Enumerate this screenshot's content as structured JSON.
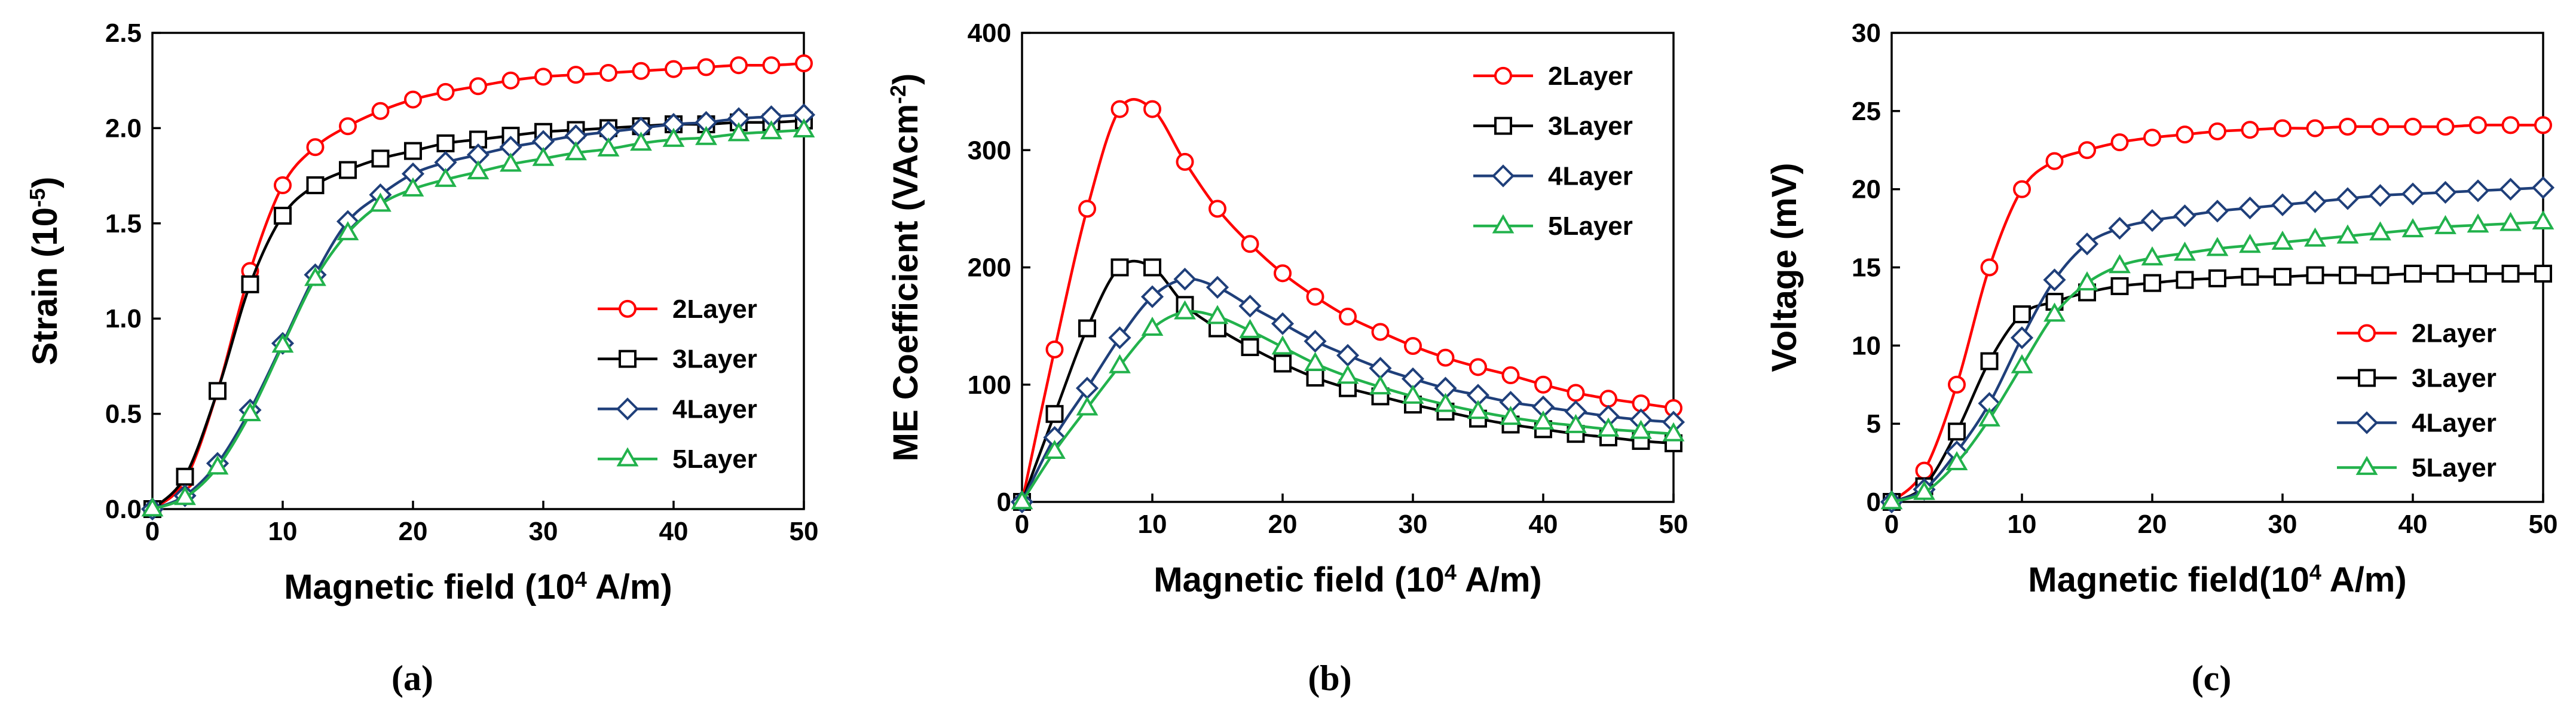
{
  "figure": {
    "colors": {
      "2Layer": "#ff0000",
      "3Layer": "#000000",
      "4Layer": "#1f3f7a",
      "5Layer": "#22b24c"
    },
    "markers": {
      "2Layer": "circle",
      "3Layer": "square",
      "4Layer": "diamond",
      "5Layer": "triangle"
    }
  },
  "chart_data": [
    {
      "type": "line",
      "panel_label": "(a)",
      "xlabel": "Magnetic field (10⁴ A/m)",
      "ylabel": "Strain (10⁻⁵)",
      "xlim": [
        0,
        50
      ],
      "ylim": [
        0,
        2.5
      ],
      "xticks": [
        "0",
        "10",
        "20",
        "30",
        "40",
        "50"
      ],
      "yticks": [
        "0.0",
        "0.5",
        "1.0",
        "1.5",
        "2.0",
        "2.5"
      ],
      "legend_position": "lower-right",
      "x": [
        0,
        2.5,
        5,
        7.5,
        10,
        12.5,
        15,
        17.5,
        20,
        22.5,
        25,
        27.5,
        30,
        32.5,
        35,
        37.5,
        40,
        42.5,
        45,
        47.5,
        50
      ],
      "series": [
        {
          "name": "2Layer",
          "values": [
            0,
            0.15,
            0.62,
            1.25,
            1.7,
            1.9,
            2.01,
            2.09,
            2.15,
            2.19,
            2.22,
            2.25,
            2.27,
            2.28,
            2.29,
            2.3,
            2.31,
            2.32,
            2.33,
            2.33,
            2.34
          ]
        },
        {
          "name": "3Layer",
          "values": [
            0,
            0.17,
            0.62,
            1.18,
            1.54,
            1.7,
            1.78,
            1.84,
            1.88,
            1.92,
            1.94,
            1.96,
            1.98,
            1.99,
            2.0,
            2.01,
            2.02,
            2.02,
            2.03,
            2.03,
            2.04
          ]
        },
        {
          "name": "4Layer",
          "values": [
            0,
            0.07,
            0.24,
            0.52,
            0.87,
            1.23,
            1.51,
            1.65,
            1.76,
            1.82,
            1.86,
            1.9,
            1.93,
            1.96,
            1.98,
            2.0,
            2.02,
            2.03,
            2.05,
            2.06,
            2.07
          ]
        },
        {
          "name": "5Layer",
          "values": [
            0,
            0.06,
            0.22,
            0.5,
            0.86,
            1.21,
            1.45,
            1.6,
            1.68,
            1.73,
            1.77,
            1.81,
            1.84,
            1.87,
            1.89,
            1.92,
            1.94,
            1.95,
            1.97,
            1.98,
            1.99
          ]
        }
      ]
    },
    {
      "type": "line",
      "panel_label": "(b)",
      "xlabel": "Magnetic field (10⁴ A/m)",
      "ylabel": "ME Coefficient (VAcm⁻²)",
      "xlim": [
        0,
        50
      ],
      "ylim": [
        0,
        400
      ],
      "xticks": [
        "0",
        "10",
        "20",
        "30",
        "40",
        "50"
      ],
      "yticks": [
        "0",
        "100",
        "200",
        "300",
        "400"
      ],
      "legend_position": "upper-right",
      "x": [
        0,
        2.5,
        5,
        7.5,
        10,
        12.5,
        15,
        17.5,
        20,
        22.5,
        25,
        27.5,
        30,
        32.5,
        35,
        37.5,
        40,
        42.5,
        45,
        47.5,
        50
      ],
      "series": [
        {
          "name": "2Layer",
          "values": [
            0,
            130,
            250,
            335,
            335,
            290,
            250,
            220,
            195,
            175,
            158,
            145,
            133,
            123,
            115,
            108,
            100,
            93,
            88,
            84,
            80
          ]
        },
        {
          "name": "3Layer",
          "values": [
            0,
            75,
            148,
            200,
            200,
            168,
            148,
            132,
            118,
            106,
            97,
            90,
            83,
            77,
            71,
            66,
            62,
            58,
            55,
            52,
            50
          ]
        },
        {
          "name": "4Layer",
          "values": [
            0,
            55,
            97,
            140,
            175,
            190,
            183,
            167,
            152,
            137,
            125,
            114,
            105,
            97,
            91,
            85,
            81,
            77,
            73,
            70,
            68
          ]
        },
        {
          "name": "5Layer",
          "values": [
            0,
            43,
            80,
            116,
            148,
            162,
            158,
            146,
            132,
            118,
            107,
            98,
            90,
            83,
            77,
            72,
            68,
            65,
            62,
            60,
            58
          ]
        }
      ]
    },
    {
      "type": "line",
      "panel_label": "(c)",
      "xlabel": "Magnetic field(10⁴ A/m)",
      "ylabel": "Voltage (mV)",
      "xlim": [
        0,
        50
      ],
      "ylim": [
        0,
        30
      ],
      "xticks": [
        "0",
        "10",
        "20",
        "30",
        "40",
        "50"
      ],
      "yticks": [
        "0",
        "5",
        "10",
        "15",
        "20",
        "25",
        "30"
      ],
      "legend_position": "lower-right",
      "x": [
        0,
        2.5,
        5,
        7.5,
        10,
        12.5,
        15,
        17.5,
        20,
        22.5,
        25,
        27.5,
        30,
        32.5,
        35,
        37.5,
        40,
        42.5,
        45,
        47.5,
        50
      ],
      "series": [
        {
          "name": "2Layer",
          "values": [
            0,
            2,
            7.5,
            15,
            20,
            21.8,
            22.5,
            23,
            23.3,
            23.5,
            23.7,
            23.8,
            23.9,
            23.9,
            24,
            24,
            24,
            24,
            24.1,
            24.1,
            24.1
          ]
        },
        {
          "name": "3Layer",
          "values": [
            0,
            1,
            4.5,
            9,
            12,
            12.8,
            13.4,
            13.8,
            14,
            14.2,
            14.3,
            14.4,
            14.4,
            14.5,
            14.5,
            14.5,
            14.6,
            14.6,
            14.6,
            14.6,
            14.6
          ]
        },
        {
          "name": "4Layer",
          "values": [
            0,
            0.8,
            3.2,
            6.3,
            10.5,
            14.2,
            16.5,
            17.5,
            18,
            18.3,
            18.6,
            18.8,
            19,
            19.2,
            19.4,
            19.6,
            19.7,
            19.8,
            19.9,
            20,
            20.1
          ]
        },
        {
          "name": "5Layer",
          "values": [
            0,
            0.6,
            2.5,
            5.3,
            8.7,
            12,
            14,
            15.1,
            15.6,
            15.9,
            16.2,
            16.4,
            16.6,
            16.8,
            17,
            17.2,
            17.4,
            17.6,
            17.7,
            17.8,
            17.9
          ]
        }
      ]
    }
  ]
}
